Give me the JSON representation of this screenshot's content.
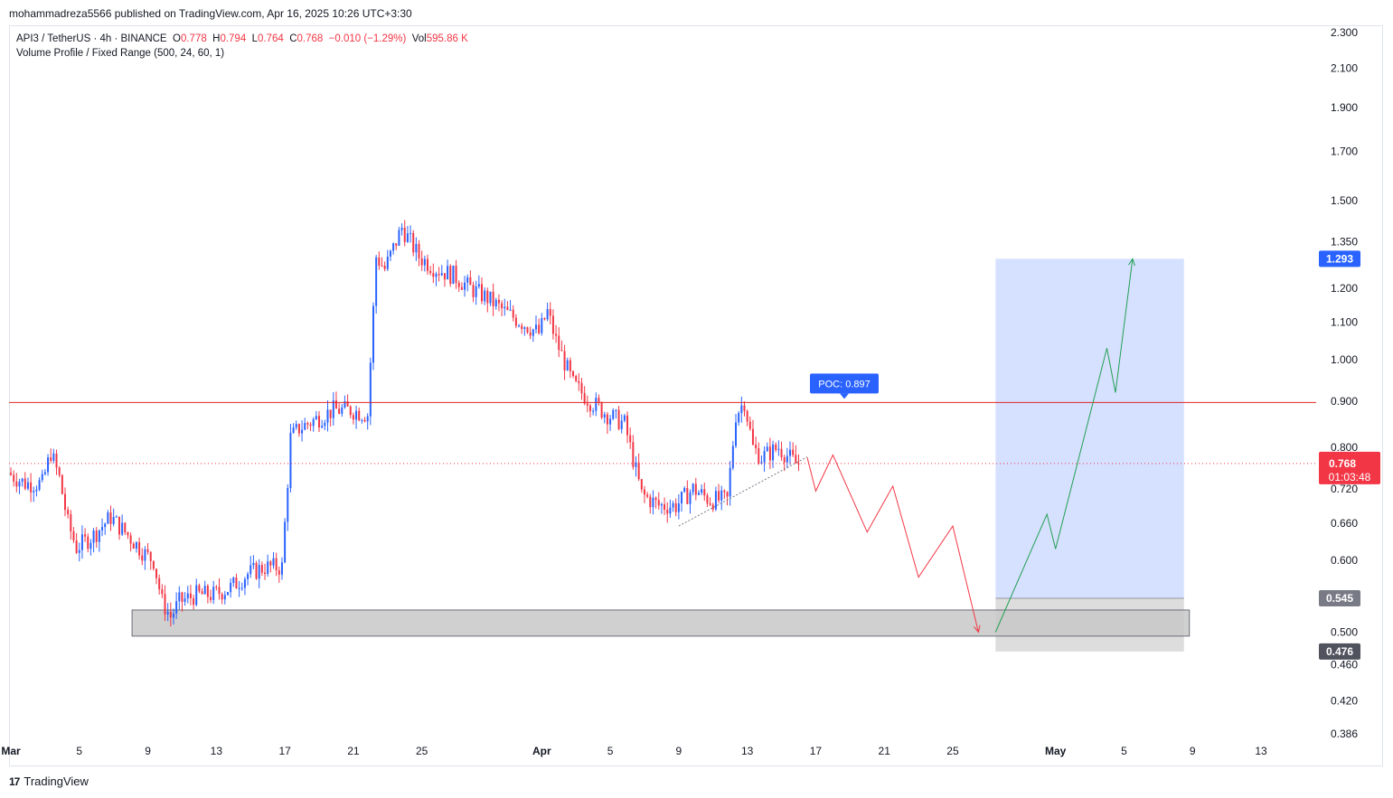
{
  "header": {
    "publisher_line": "mohammadreza5566 published on TradingView.com, Apr 16, 2025 10:26 UTC+3:30"
  },
  "legend": {
    "symbol": "API3 / TetherUS · 4h · BINANCE",
    "o_label": "O",
    "o_value": "0.778",
    "h_label": "H",
    "h_value": "0.794",
    "l_label": "L",
    "l_value": "0.764",
    "c_label": "C",
    "c_value": "0.768",
    "change": "−0.010 (−1.29%)",
    "vol_label": "Vol",
    "vol_value": "595.86 K",
    "indicator": "Volume Profile / Fixed Range (500, 24, 60, 1)"
  },
  "footer": {
    "brand": "TradingView",
    "logo": "tradingview-logo"
  },
  "colors": {
    "up": "#2962ff",
    "down": "#f23645",
    "grid_border": "#e0e3eb",
    "poc_line": "#e02424",
    "poc_badge": "#2962ff",
    "target_zone": "#d4deff",
    "stop_zone": "#d9d9d9",
    "support_zone": "#c8c8c8",
    "projection_down": "#f23645",
    "projection_up": "#22a053"
  },
  "chart_data": {
    "type": "candlestick",
    "symbol": "API3/USDT",
    "timeframe": "4h",
    "scale": "log",
    "y_ticks": [
      "2.300",
      "2.100",
      "1.900",
      "1.700",
      "1.500",
      "1.350",
      "1.200",
      "1.100",
      "1.000",
      "0.900",
      "0.800",
      "0.720",
      "0.660",
      "0.600",
      "0.500",
      "0.460",
      "0.420",
      "0.386"
    ],
    "ylim": [
      0.386,
      2.3
    ],
    "x_ticks": [
      {
        "label": "Mar",
        "date": "2025-03-01",
        "bold": true
      },
      {
        "label": "5",
        "date": "2025-03-05"
      },
      {
        "label": "9",
        "date": "2025-03-09"
      },
      {
        "label": "13",
        "date": "2025-03-13"
      },
      {
        "label": "17",
        "date": "2025-03-17"
      },
      {
        "label": "21",
        "date": "2025-03-21"
      },
      {
        "label": "25",
        "date": "2025-03-25"
      },
      {
        "label": "Apr",
        "date": "2025-04-01",
        "bold": true
      },
      {
        "label": "5",
        "date": "2025-04-05"
      },
      {
        "label": "9",
        "date": "2025-04-09"
      },
      {
        "label": "13",
        "date": "2025-04-13"
      },
      {
        "label": "17",
        "date": "2025-04-17"
      },
      {
        "label": "21",
        "date": "2025-04-21"
      },
      {
        "label": "25",
        "date": "2025-04-25"
      },
      {
        "label": "May",
        "date": "2025-05-01",
        "bold": true
      },
      {
        "label": "5",
        "date": "2025-05-05"
      },
      {
        "label": "9",
        "date": "2025-05-09"
      },
      {
        "label": "13",
        "date": "2025-05-13"
      }
    ],
    "price_path": [
      [
        "2025-03-01",
        0.75
      ],
      [
        "2025-03-02",
        0.73
      ],
      [
        "2025-03-03",
        0.73
      ],
      [
        "2025-03-03T12",
        0.79
      ],
      [
        "2025-03-04",
        0.74
      ],
      [
        "2025-03-04T12",
        0.66
      ],
      [
        "2025-03-05",
        0.62
      ],
      [
        "2025-03-06",
        0.64
      ],
      [
        "2025-03-07",
        0.67
      ],
      [
        "2025-03-08",
        0.64
      ],
      [
        "2025-03-09",
        0.61
      ],
      [
        "2025-03-09T12",
        0.6
      ],
      [
        "2025-03-10",
        0.54
      ],
      [
        "2025-03-10T12",
        0.52
      ],
      [
        "2025-03-11",
        0.54
      ],
      [
        "2025-03-12",
        0.55
      ],
      [
        "2025-03-13",
        0.55
      ],
      [
        "2025-03-14",
        0.56
      ],
      [
        "2025-03-15",
        0.58
      ],
      [
        "2025-03-16",
        0.59
      ],
      [
        "2025-03-17",
        0.59
      ],
      [
        "2025-03-17T12",
        0.82
      ],
      [
        "2025-03-18",
        0.84
      ],
      [
        "2025-03-19",
        0.86
      ],
      [
        "2025-03-20",
        0.88
      ],
      [
        "2025-03-21",
        0.88
      ],
      [
        "2025-03-22",
        0.87
      ],
      [
        "2025-03-22T12",
        1.3
      ],
      [
        "2025-03-23",
        1.26
      ],
      [
        "2025-03-24",
        1.4
      ],
      [
        "2025-03-25",
        1.3
      ],
      [
        "2025-03-26",
        1.26
      ],
      [
        "2025-03-27",
        1.24
      ],
      [
        "2025-03-28",
        1.2
      ],
      [
        "2025-03-29",
        1.17
      ],
      [
        "2025-03-30",
        1.13
      ],
      [
        "2025-03-31",
        1.1
      ],
      [
        "2025-04-01",
        1.07
      ],
      [
        "2025-04-01T12",
        1.13
      ],
      [
        "2025-04-02",
        1.05
      ],
      [
        "2025-04-03",
        0.94
      ],
      [
        "2025-04-04",
        0.9
      ],
      [
        "2025-04-05",
        0.87
      ],
      [
        "2025-04-06",
        0.85
      ],
      [
        "2025-04-07",
        0.71
      ],
      [
        "2025-04-08",
        0.69
      ],
      [
        "2025-04-09",
        0.69
      ],
      [
        "2025-04-10",
        0.72
      ],
      [
        "2025-04-11",
        0.7
      ],
      [
        "2025-04-12",
        0.7
      ],
      [
        "2025-04-12T12",
        0.87
      ],
      [
        "2025-04-13",
        0.9
      ],
      [
        "2025-04-13T12",
        0.8
      ],
      [
        "2025-04-14",
        0.78
      ],
      [
        "2025-04-15",
        0.8
      ],
      [
        "2025-04-16",
        0.768
      ]
    ],
    "last_price": {
      "value": "0.768",
      "countdown": "01:03:48"
    },
    "poc": {
      "label": "POC: 0.897",
      "value": 0.897
    },
    "long_position": {
      "start": "2025-04-27T12",
      "end": "2025-05-08T12",
      "entry": 0.545,
      "target": 1.293,
      "stop": 0.476,
      "target_label": "1.293",
      "entry_label": "0.545",
      "stop_label": "0.476"
    },
    "support_zone": {
      "start": "2025-03-08T12",
      "end": "2025-05-08T12",
      "low": 0.495,
      "high": 0.529
    },
    "trendline": {
      "from": [
        "2025-04-09",
        0.655
      ],
      "to": [
        "2025-04-16T12",
        0.781
      ]
    },
    "projection_down": [
      [
        "2025-04-16T12",
        0.78
      ],
      [
        "2025-04-17",
        0.716
      ],
      [
        "2025-04-18",
        0.785
      ],
      [
        "2025-04-20",
        0.645
      ],
      [
        "2025-04-21T12",
        0.725
      ],
      [
        "2025-04-23",
        0.575
      ],
      [
        "2025-04-25",
        0.655
      ],
      [
        "2025-04-26T12",
        0.5
      ]
    ],
    "projection_up": [
      [
        "2025-04-27T12",
        0.5
      ],
      [
        "2025-04-30T12",
        0.675
      ],
      [
        "2025-05-01",
        0.618
      ],
      [
        "2025-05-04",
        1.03
      ],
      [
        "2025-05-04T12",
        0.92
      ],
      [
        "2025-05-05T12",
        1.293
      ]
    ]
  }
}
